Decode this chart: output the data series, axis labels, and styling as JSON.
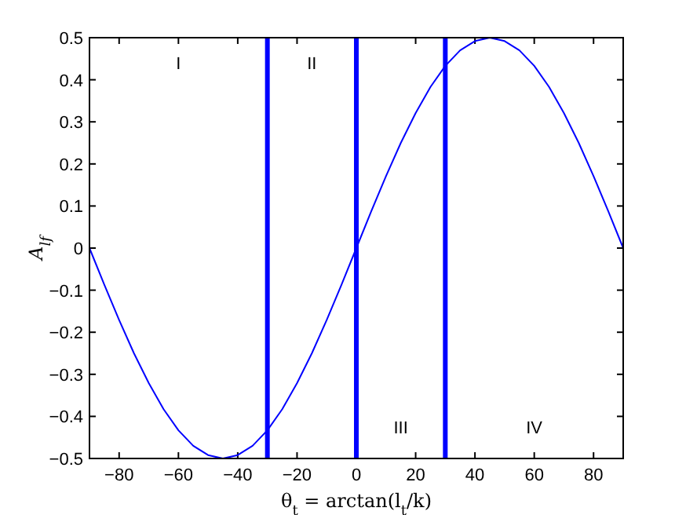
{
  "chart_data": {
    "type": "line",
    "xlabel": "θ$_{t}$ = arctan(l$_{t}$/k)",
    "ylabel": "A$_{lf}$",
    "x": [
      -90,
      -85,
      -80,
      -75,
      -70,
      -65,
      -60,
      -55,
      -50,
      -45,
      -40,
      -35,
      -30,
      -25,
      -20,
      -15,
      -10,
      -5,
      0,
      5,
      10,
      15,
      20,
      25,
      30,
      35,
      40,
      45,
      50,
      55,
      60,
      65,
      70,
      75,
      80,
      85,
      90
    ],
    "series": [
      {
        "color": "#0000ff",
        "values": [
          0,
          -0.087,
          -0.171,
          -0.25,
          -0.321,
          -0.383,
          -0.433,
          -0.47,
          -0.492,
          -0.5,
          -0.492,
          -0.47,
          -0.433,
          -0.383,
          -0.321,
          -0.25,
          -0.171,
          -0.087,
          0,
          0.087,
          0.171,
          0.25,
          0.321,
          0.383,
          0.433,
          0.47,
          0.492,
          0.5,
          0.492,
          0.47,
          0.433,
          0.383,
          0.321,
          0.25,
          0.171,
          0.087,
          0
        ]
      }
    ],
    "xlim": [
      -90,
      90
    ],
    "xticks": [
      -80,
      -60,
      -40,
      -20,
      0,
      20,
      40,
      60,
      80
    ],
    "ylim": [
      -0.5,
      0.5
    ],
    "yticks": [
      -0.5,
      -0.4,
      -0.3,
      -0.2,
      -0.1,
      0,
      0.1,
      0.2,
      0.3,
      0.4,
      0.5
    ],
    "grid": false,
    "marker": "none",
    "line_style": "solid",
    "ref_lines": [
      {
        "axis": "x",
        "value": -30,
        "color": "#0000ff"
      },
      {
        "axis": "x",
        "value": 0,
        "color": "#0000ff"
      },
      {
        "axis": "x",
        "value": 30,
        "color": "#0000ff"
      }
    ],
    "annotations": [
      "I",
      "II",
      "III",
      "IV"
    ]
  }
}
